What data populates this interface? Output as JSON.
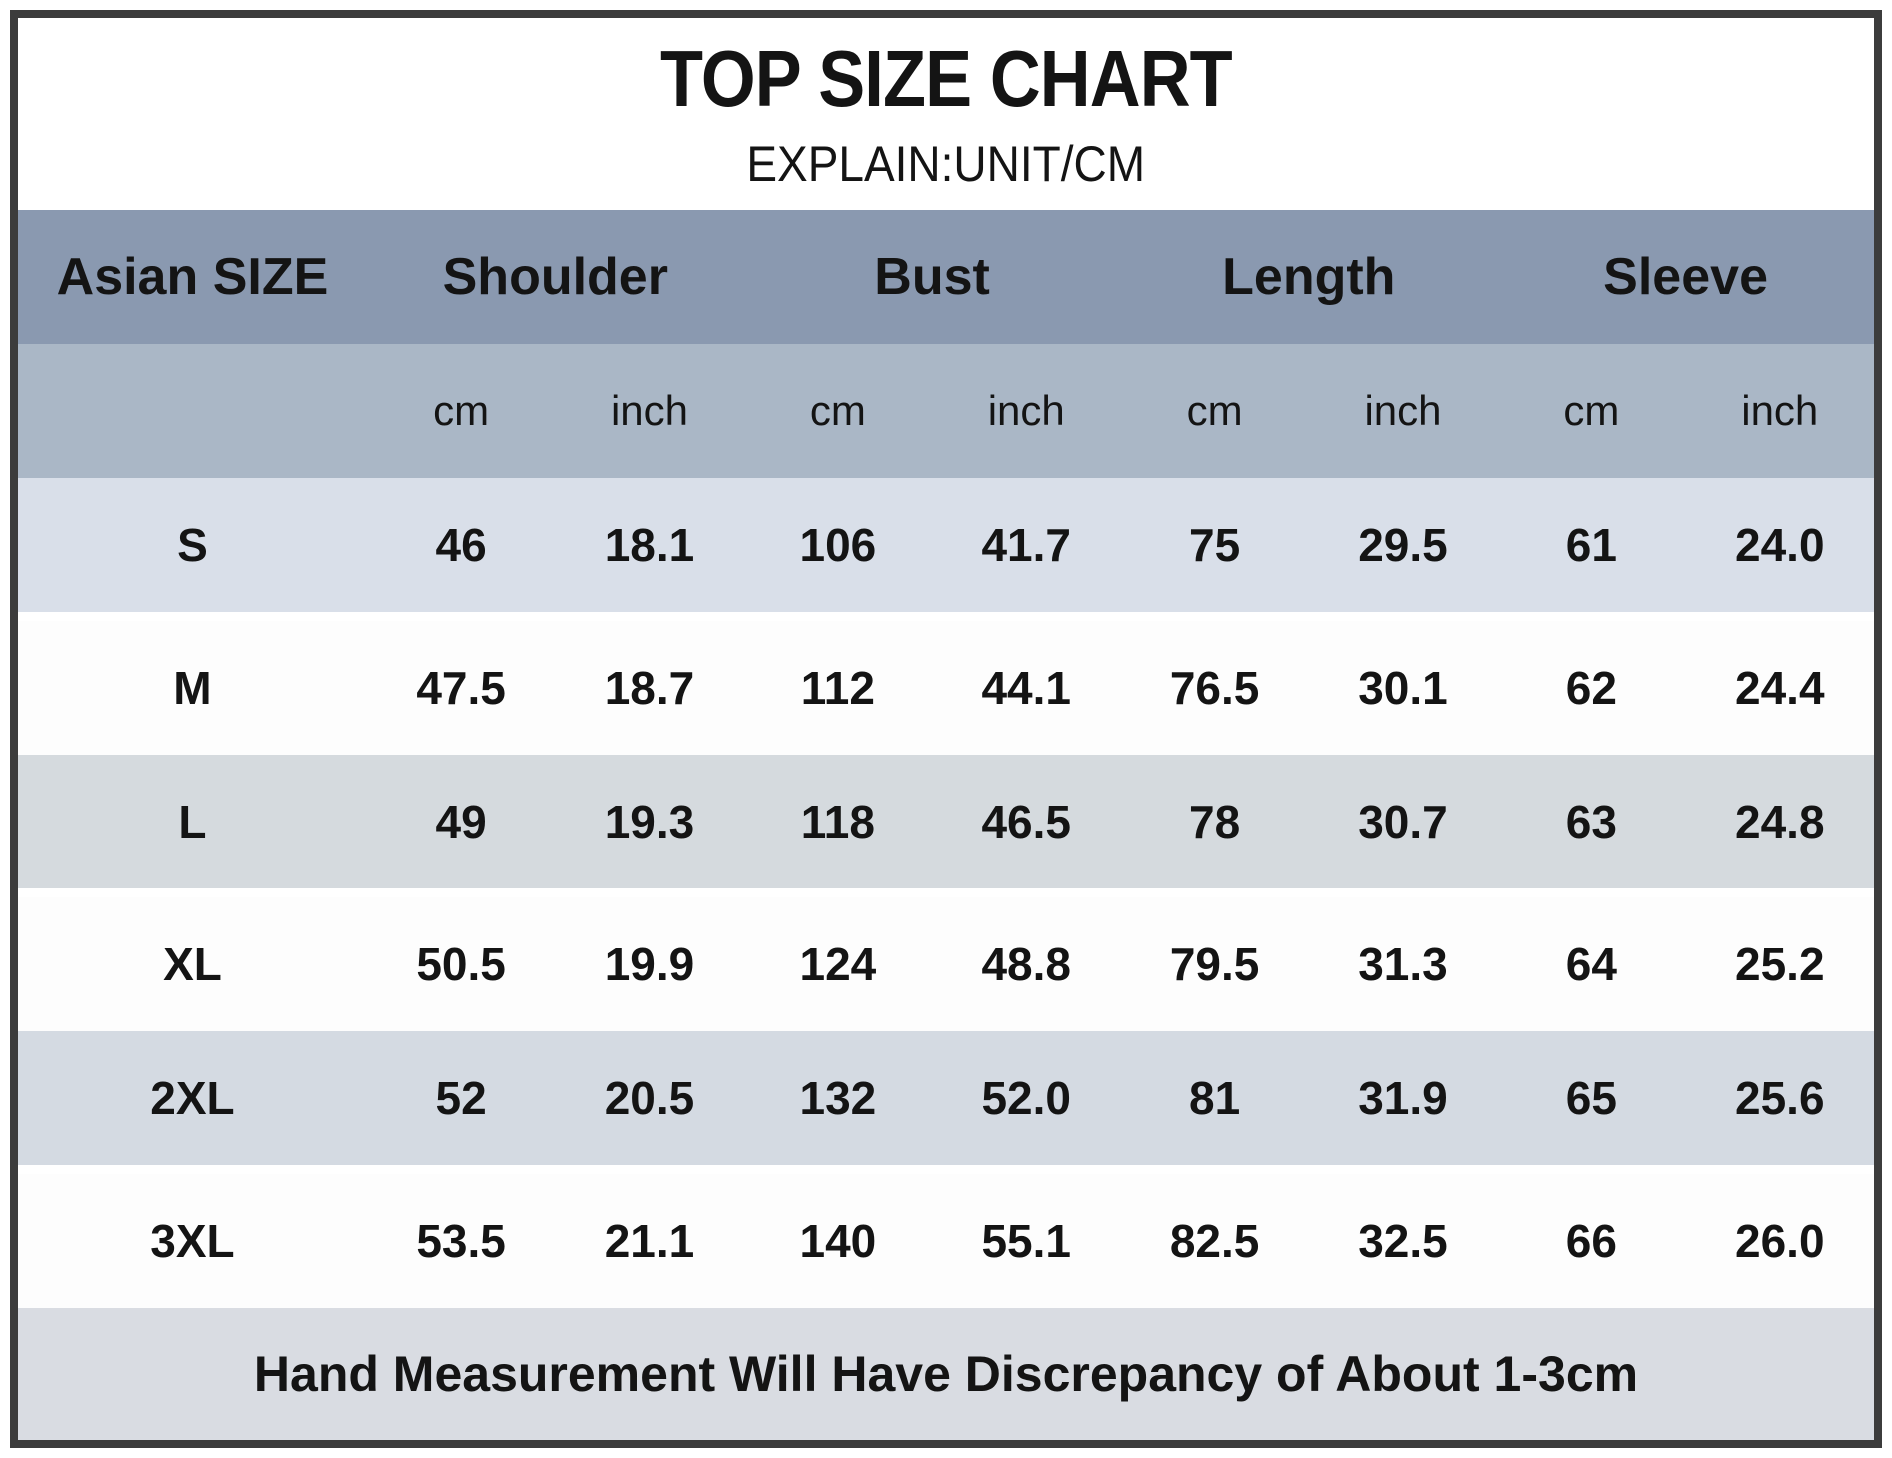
{
  "chart_data": {
    "type": "table",
    "title": "TOP SIZE CHART",
    "subtitle": "EXPLAIN:UNIT/CM",
    "columns": [
      "Asian SIZE",
      "Shoulder",
      "Bust",
      "Length",
      "Sleeve"
    ],
    "units": [
      "cm",
      "inch",
      "cm",
      "inch",
      "cm",
      "inch",
      "cm",
      "inch"
    ],
    "rows": [
      {
        "size": "S",
        "values": [
          "46",
          "18.1",
          "106",
          "41.7",
          "75",
          "29.5",
          "61",
          "24.0"
        ]
      },
      {
        "size": "M",
        "values": [
          "47.5",
          "18.7",
          "112",
          "44.1",
          "76.5",
          "30.1",
          "62",
          "24.4"
        ]
      },
      {
        "size": "L",
        "values": [
          "49",
          "19.3",
          "118",
          "46.5",
          "78",
          "30.7",
          "63",
          "24.8"
        ]
      },
      {
        "size": "XL",
        "values": [
          "50.5",
          "19.9",
          "124",
          "48.8",
          "79.5",
          "31.3",
          "64",
          "25.2"
        ]
      },
      {
        "size": "2XL",
        "values": [
          "52",
          "20.5",
          "132",
          "52.0",
          "81",
          "31.9",
          "65",
          "25.6"
        ]
      },
      {
        "size": "3XL",
        "values": [
          "53.5",
          "21.1",
          "140",
          "55.1",
          "82.5",
          "32.5",
          "66",
          "26.0"
        ]
      }
    ],
    "footer_note": "Hand Measurement Will Have Discrepancy of About 1-3cm"
  },
  "colors": {
    "group_header_bg": "#8a99b0",
    "units_header_bg": "#aab7c6",
    "row_shaded_s": "#d9dfe9",
    "row_shaded_l": "#d5dade",
    "row_shaded_2xl": "#d4dae2",
    "row_white": "#fdfdfd",
    "footer_bg": "#d9dce2",
    "frame_border": "#3c3c3c",
    "text": "#141414"
  }
}
